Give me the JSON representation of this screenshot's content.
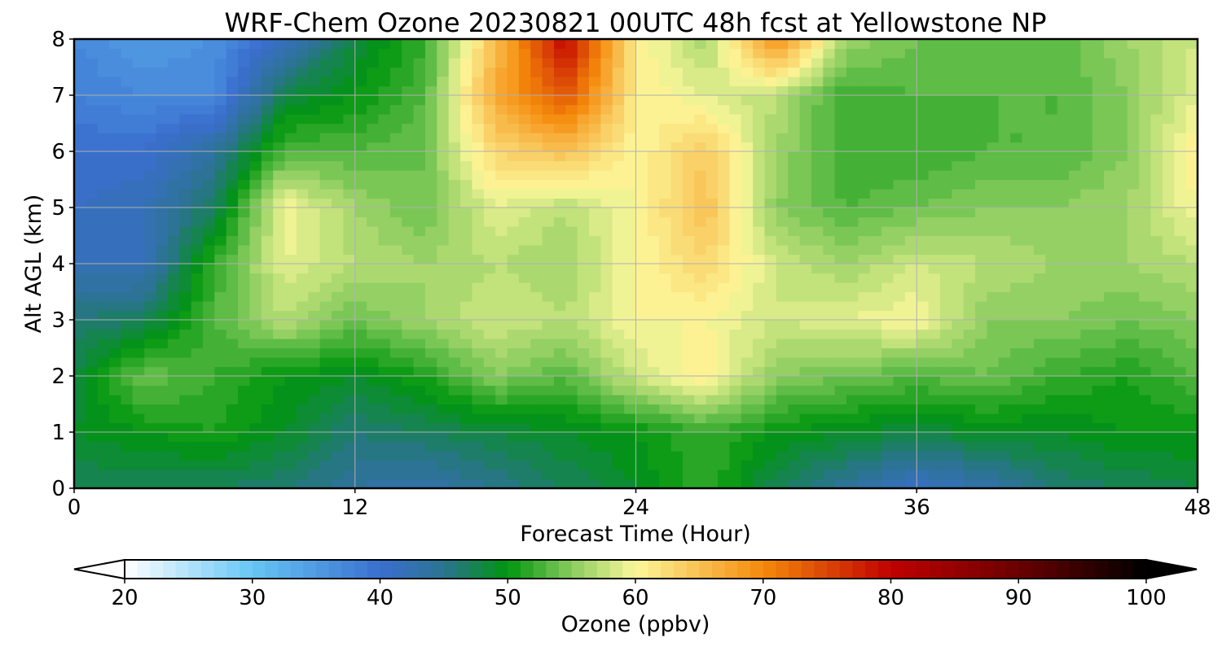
{
  "chart_data": {
    "type": "heatmap",
    "title": "WRF-Chem Ozone  20230821 00UTC 48h fcst at Yellowstone NP",
    "xlabel": "Forecast Time (Hour)",
    "ylabel": "Alt AGL (km)",
    "xlim": [
      0,
      48
    ],
    "ylim": [
      0,
      8
    ],
    "x_ticks": [
      0,
      12,
      24,
      36,
      48
    ],
    "y_ticks": [
      0,
      1,
      2,
      3,
      4,
      5,
      6,
      7,
      8
    ],
    "grid": true,
    "x_hours": [
      0,
      3,
      6,
      9,
      12,
      15,
      18,
      21,
      24,
      27,
      30,
      33,
      36,
      39,
      42,
      45,
      48
    ],
    "y_km": [
      0,
      1,
      2,
      3,
      4,
      5,
      6,
      7,
      8
    ],
    "z_rows_ozone_ppbv": [
      [
        47,
        47,
        47,
        46,
        44,
        43,
        45,
        47,
        49,
        52,
        47,
        44,
        41,
        43,
        46,
        47,
        48
      ],
      [
        49,
        50,
        51,
        49,
        46,
        47,
        48,
        49,
        50,
        52,
        50,
        49,
        48,
        49,
        49,
        50,
        50
      ],
      [
        48,
        54,
        52,
        50,
        49,
        51,
        55,
        53,
        58,
        61,
        55,
        54,
        53,
        54,
        52,
        51,
        53
      ],
      [
        46,
        47,
        53,
        57,
        54,
        56,
        58,
        57,
        60,
        60,
        58,
        59,
        60,
        55,
        55,
        54,
        55
      ],
      [
        42,
        42,
        52,
        59,
        57,
        56,
        57,
        56,
        60,
        63,
        58,
        56,
        58,
        57,
        56,
        56,
        57
      ],
      [
        41,
        42,
        47,
        60,
        56,
        54,
        59,
        57,
        60,
        65,
        55,
        53,
        54,
        55,
        55,
        56,
        60
      ],
      [
        40,
        40,
        44,
        53,
        53,
        54,
        63,
        65,
        60,
        64,
        56,
        52,
        52,
        53,
        53,
        55,
        61
      ],
      [
        38,
        37,
        37,
        48,
        50,
        53,
        67,
        74,
        61,
        59,
        57,
        52,
        53,
        53,
        53,
        55,
        59
      ],
      [
        37,
        35,
        36,
        42,
        48,
        52,
        65,
        80,
        61,
        56,
        70,
        56,
        54,
        54,
        53,
        56,
        58
      ]
    ],
    "colorbar": {
      "label": "Ozone  (ppbv)",
      "min": 20,
      "max": 100,
      "ticks": [
        20,
        30,
        40,
        50,
        60,
        70,
        80,
        90,
        100
      ],
      "extend": "both",
      "color_stops": [
        {
          "value": 20,
          "color": "#ffffff"
        },
        {
          "value": 30,
          "color": "#66c6f5"
        },
        {
          "value": 40,
          "color": "#3a6fcf"
        },
        {
          "value": 45,
          "color": "#2b7390"
        },
        {
          "value": 50,
          "color": "#00950e"
        },
        {
          "value": 55,
          "color": "#88cc5e"
        },
        {
          "value": 60,
          "color": "#fcf79a"
        },
        {
          "value": 70,
          "color": "#f58a0a"
        },
        {
          "value": 80,
          "color": "#c00000"
        },
        {
          "value": 90,
          "color": "#6a0000"
        },
        {
          "value": 100,
          "color": "#000000"
        }
      ]
    }
  }
}
